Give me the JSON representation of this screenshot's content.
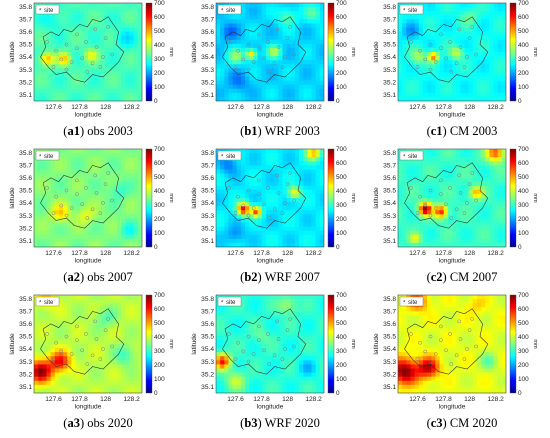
{
  "figure": {
    "colormap": [
      "#00008f",
      "#0000ff",
      "#0080ff",
      "#00ffff",
      "#80ff80",
      "#ffff00",
      "#ff8000",
      "#ff0000",
      "#800000"
    ],
    "legend_label": "site",
    "legend_marker": "asterisk-icon",
    "site_color": "#7d7d7d",
    "boundary_color": "#333333"
  },
  "chart_data": [
    {
      "panel": "a1",
      "caption_bold": "a1",
      "caption_rest": " obs 2003",
      "type": "heatmap",
      "title": "",
      "xlabel": "longitude",
      "ylabel": "latitude",
      "zlabel": "mm",
      "xticks": [
        "127.6",
        "127.8",
        "128",
        "128.2"
      ],
      "yticks": [
        "35.8",
        "35.7",
        "35.6",
        "35.5",
        "35.4",
        "35.3",
        "35.2",
        "35.1"
      ],
      "xlim": [
        127.45,
        128.28
      ],
      "ylim": [
        35.05,
        35.83
      ],
      "zlim": [
        0,
        700
      ],
      "zticks": [
        "700",
        "600",
        "500",
        "400",
        "300",
        "200",
        "100",
        "0"
      ],
      "background_mm": 310,
      "hotspots": [
        {
          "lon": 127.55,
          "lat": 35.38,
          "mm": 500,
          "r": 0.05
        },
        {
          "lon": 127.68,
          "lat": 35.38,
          "mm": 470,
          "r": 0.05
        },
        {
          "lon": 127.89,
          "lat": 35.41,
          "mm": 420,
          "r": 0.05
        },
        {
          "lon": 127.6,
          "lat": 35.7,
          "mm": 270,
          "r": 0.08
        },
        {
          "lon": 128.15,
          "lat": 35.55,
          "mm": 250,
          "r": 0.08
        }
      ]
    },
    {
      "panel": "b1",
      "caption_bold": "b1",
      "caption_rest": " WRF 2003",
      "type": "heatmap",
      "title": "",
      "xlabel": "longitude",
      "ylabel": "latitude",
      "zlabel": "mm",
      "xticks": [
        "127.6",
        "127.8",
        "128",
        "128.2"
      ],
      "yticks": [
        "35.8",
        "35.7",
        "35.6",
        "35.5",
        "35.4",
        "35.3",
        "35.2",
        "35.1"
      ],
      "xlim": [
        127.45,
        128.28
      ],
      "ylim": [
        35.05,
        35.83
      ],
      "zlim": [
        0,
        700
      ],
      "zticks": [
        "700",
        "600",
        "500",
        "400",
        "300",
        "200",
        "100",
        "0"
      ],
      "background_mm": 235,
      "hotspots": [
        {
          "lon": 127.6,
          "lat": 35.4,
          "mm": 360,
          "r": 0.06
        },
        {
          "lon": 127.72,
          "lat": 35.42,
          "mm": 470,
          "r": 0.04
        },
        {
          "lon": 127.9,
          "lat": 35.44,
          "mm": 380,
          "r": 0.05
        },
        {
          "lon": 128.0,
          "lat": 35.72,
          "mm": 330,
          "r": 0.07
        },
        {
          "lon": 128.2,
          "lat": 35.75,
          "mm": 320,
          "r": 0.07
        },
        {
          "lon": 127.55,
          "lat": 35.6,
          "mm": 160,
          "r": 0.07
        },
        {
          "lon": 127.62,
          "lat": 35.2,
          "mm": 170,
          "r": 0.08
        }
      ]
    },
    {
      "panel": "c1",
      "caption_bold": "c1",
      "caption_rest": " CM 2003",
      "type": "heatmap",
      "title": "",
      "xlabel": "longitude",
      "ylabel": "latitude",
      "zlabel": "mm",
      "xticks": [
        "127.6",
        "127.8",
        "128",
        "128.2"
      ],
      "yticks": [
        "35.8",
        "35.7",
        "35.6",
        "35.5",
        "35.4",
        "35.3",
        "35.2",
        "35.1"
      ],
      "xlim": [
        127.45,
        128.28
      ],
      "ylim": [
        35.05,
        35.83
      ],
      "zlim": [
        0,
        700
      ],
      "zticks": [
        "700",
        "600",
        "500",
        "400",
        "300",
        "200",
        "100",
        "0"
      ],
      "background_mm": 270,
      "hotspots": [
        {
          "lon": 127.6,
          "lat": 35.4,
          "mm": 380,
          "r": 0.06
        },
        {
          "lon": 127.72,
          "lat": 35.4,
          "mm": 520,
          "r": 0.04
        },
        {
          "lon": 127.9,
          "lat": 35.43,
          "mm": 400,
          "r": 0.05
        },
        {
          "lon": 128.0,
          "lat": 35.72,
          "mm": 330,
          "r": 0.07
        },
        {
          "lon": 127.55,
          "lat": 35.6,
          "mm": 190,
          "r": 0.07
        }
      ]
    },
    {
      "panel": "a2",
      "caption_bold": "a2",
      "caption_rest": " obs 2007",
      "type": "heatmap",
      "title": "",
      "xlabel": "longitude",
      "ylabel": "latitude",
      "zlabel": "mm",
      "xticks": [
        "127.6",
        "127.8",
        "128",
        "128.2"
      ],
      "yticks": [
        "35.8",
        "35.7",
        "35.6",
        "35.5",
        "35.4",
        "35.3",
        "35.2",
        "35.1"
      ],
      "xlim": [
        127.45,
        128.28
      ],
      "ylim": [
        35.05,
        35.83
      ],
      "zlim": [
        0,
        700
      ],
      "zticks": [
        "700",
        "600",
        "500",
        "400",
        "300",
        "200",
        "100",
        "0"
      ],
      "background_mm": 350,
      "hotspots": [
        {
          "lon": 127.65,
          "lat": 35.32,
          "mm": 470,
          "r": 0.07
        },
        {
          "lon": 127.85,
          "lat": 35.3,
          "mm": 420,
          "r": 0.07
        },
        {
          "lon": 128.1,
          "lat": 35.5,
          "mm": 290,
          "r": 0.07
        },
        {
          "lon": 128.18,
          "lat": 35.18,
          "mm": 280,
          "r": 0.07
        }
      ]
    },
    {
      "panel": "b2",
      "caption_bold": "b2",
      "caption_rest": " WRF 2007",
      "type": "heatmap",
      "title": "",
      "xlabel": "longitude",
      "ylabel": "latitude",
      "zlabel": "mm",
      "xticks": [
        "127.6",
        "127.8",
        "128",
        "128.2"
      ],
      "yticks": [
        "35.8",
        "35.7",
        "35.6",
        "35.5",
        "35.4",
        "35.3",
        "35.2",
        "35.1"
      ],
      "xlim": [
        127.45,
        128.28
      ],
      "ylim": [
        35.05,
        35.83
      ],
      "zlim": [
        0,
        700
      ],
      "zticks": [
        "700",
        "600",
        "500",
        "400",
        "300",
        "200",
        "100",
        "0"
      ],
      "background_mm": 250,
      "hotspots": [
        {
          "lon": 127.66,
          "lat": 35.35,
          "mm": 620,
          "r": 0.05
        },
        {
          "lon": 127.76,
          "lat": 35.33,
          "mm": 560,
          "r": 0.04
        },
        {
          "lon": 128.2,
          "lat": 35.8,
          "mm": 480,
          "r": 0.06
        },
        {
          "lon": 128.05,
          "lat": 35.48,
          "mm": 440,
          "r": 0.05
        },
        {
          "lon": 127.6,
          "lat": 35.15,
          "mm": 180,
          "r": 0.07
        },
        {
          "lon": 127.55,
          "lat": 35.7,
          "mm": 170,
          "r": 0.07
        }
      ]
    },
    {
      "panel": "c2",
      "caption_bold": "c2",
      "caption_rest": " CM 2007",
      "type": "heatmap",
      "title": "",
      "xlabel": "longitude",
      "ylabel": "latitude",
      "zlabel": "mm",
      "xticks": [
        "127.6",
        "127.8",
        "128",
        "128.2"
      ],
      "yticks": [
        "35.8",
        "35.7",
        "35.6",
        "35.5",
        "35.4",
        "35.3",
        "35.2",
        "35.1"
      ],
      "xlim": [
        127.45,
        128.28
      ],
      "ylim": [
        35.05,
        35.83
      ],
      "zlim": [
        0,
        700
      ],
      "zticks": [
        "700",
        "600",
        "500",
        "400",
        "300",
        "200",
        "100",
        "0"
      ],
      "background_mm": 300,
      "hotspots": [
        {
          "lon": 127.66,
          "lat": 35.35,
          "mm": 680,
          "r": 0.05
        },
        {
          "lon": 127.78,
          "lat": 35.33,
          "mm": 600,
          "r": 0.05
        },
        {
          "lon": 128.2,
          "lat": 35.8,
          "mm": 560,
          "r": 0.07
        },
        {
          "lon": 128.05,
          "lat": 35.48,
          "mm": 490,
          "r": 0.05
        },
        {
          "lon": 127.58,
          "lat": 35.12,
          "mm": 430,
          "r": 0.04
        }
      ]
    },
    {
      "panel": "a3",
      "caption_bold": "a3",
      "caption_rest": " obs 2020",
      "type": "heatmap",
      "title": "",
      "xlabel": "longitude",
      "ylabel": "latitude",
      "zlabel": "mm",
      "xticks": [
        "127.6",
        "127.8",
        "128",
        "128.2"
      ],
      "yticks": [
        "35.8",
        "35.7",
        "35.6",
        "35.5",
        "35.4",
        "35.3",
        "35.2",
        "35.1"
      ],
      "xlim": [
        127.45,
        128.28
      ],
      "ylim": [
        35.05,
        35.83
      ],
      "zlim": [
        0,
        700
      ],
      "zticks": [
        "700",
        "600",
        "500",
        "400",
        "300",
        "200",
        "100",
        "0"
      ],
      "background_mm": 390,
      "hotspots": [
        {
          "lon": 127.5,
          "lat": 35.22,
          "mm": 680,
          "r": 0.09
        },
        {
          "lon": 127.65,
          "lat": 35.3,
          "mm": 610,
          "r": 0.08
        },
        {
          "lon": 127.55,
          "lat": 35.8,
          "mm": 470,
          "r": 0.08
        },
        {
          "lon": 128.15,
          "lat": 35.35,
          "mm": 300,
          "r": 0.08
        },
        {
          "lon": 128.0,
          "lat": 35.65,
          "mm": 320,
          "r": 0.08
        }
      ]
    },
    {
      "panel": "b3",
      "caption_bold": "b3",
      "caption_rest": " WRF 2020",
      "type": "heatmap",
      "title": "",
      "xlabel": "longitude",
      "ylabel": "latitude",
      "zlabel": "mm",
      "xticks": [
        "127.6",
        "127.8",
        "128",
        "128.2"
      ],
      "yticks": [
        "35.8",
        "35.7",
        "35.6",
        "35.5",
        "35.4",
        "35.3",
        "35.2",
        "35.1"
      ],
      "xlim": [
        127.45,
        128.28
      ],
      "ylim": [
        35.05,
        35.83
      ],
      "zlim": [
        0,
        700
      ],
      "zticks": [
        "700",
        "600",
        "500",
        "400",
        "300",
        "200",
        "100",
        "0"
      ],
      "background_mm": 290,
      "hotspots": [
        {
          "lon": 127.5,
          "lat": 35.3,
          "mm": 600,
          "r": 0.06
        },
        {
          "lon": 127.6,
          "lat": 35.15,
          "mm": 400,
          "r": 0.07
        },
        {
          "lon": 128.0,
          "lat": 35.75,
          "mm": 380,
          "r": 0.07
        },
        {
          "lon": 127.8,
          "lat": 35.5,
          "mm": 330,
          "r": 0.07
        },
        {
          "lon": 128.15,
          "lat": 35.25,
          "mm": 220,
          "r": 0.07
        }
      ]
    },
    {
      "panel": "c3",
      "caption_bold": "c3",
      "caption_rest": " CM 2020",
      "type": "heatmap",
      "title": "",
      "xlabel": "longitude",
      "ylabel": "latitude",
      "zlabel": "mm",
      "xticks": [
        "127.6",
        "127.8",
        "128",
        "128.2"
      ],
      "yticks": [
        "35.8",
        "35.7",
        "35.6",
        "35.5",
        "35.4",
        "35.3",
        "35.2",
        "35.1"
      ],
      "xlim": [
        127.45,
        128.28
      ],
      "ylim": [
        35.05,
        35.83
      ],
      "zlim": [
        0,
        700
      ],
      "zticks": [
        "700",
        "600",
        "500",
        "400",
        "300",
        "200",
        "100",
        "0"
      ],
      "background_mm": 420,
      "hotspots": [
        {
          "lon": 127.5,
          "lat": 35.22,
          "mm": 700,
          "r": 0.1
        },
        {
          "lon": 127.68,
          "lat": 35.25,
          "mm": 660,
          "r": 0.08
        },
        {
          "lon": 127.6,
          "lat": 35.78,
          "mm": 560,
          "r": 0.08
        },
        {
          "lon": 128.05,
          "lat": 35.75,
          "mm": 470,
          "r": 0.07
        },
        {
          "lon": 128.15,
          "lat": 35.3,
          "mm": 330,
          "r": 0.07
        }
      ]
    }
  ]
}
